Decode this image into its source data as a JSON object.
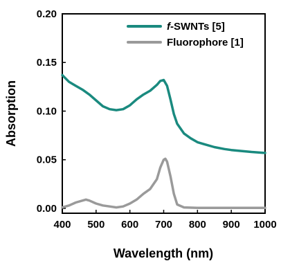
{
  "chart_data": {
    "type": "line",
    "xlabel": "Wavelength (nm)",
    "ylabel": "Absorption",
    "xlim": [
      400,
      1000
    ],
    "ylim": [
      -0.005,
      0.2
    ],
    "x_ticks": [
      "400",
      "500",
      "600",
      "700",
      "800",
      "900",
      "1000"
    ],
    "y_ticks": [
      "0.00",
      "0.05",
      "0.10",
      "0.15",
      "0.20"
    ],
    "x_tick_values": [
      400,
      500,
      600,
      700,
      800,
      900,
      1000
    ],
    "y_tick_values": [
      0.0,
      0.05,
      0.1,
      0.15,
      0.2
    ],
    "grid": false,
    "legend_position": "top-right",
    "series": [
      {
        "name_prefix": "f",
        "name_suffix": "-SWNTs [5]",
        "name": "f-SWNTs [5]",
        "color": "#1a8a7f",
        "x": [
          400,
          420,
          440,
          460,
          480,
          500,
          520,
          540,
          560,
          580,
          600,
          620,
          640,
          660,
          680,
          690,
          700,
          710,
          720,
          730,
          740,
          760,
          780,
          800,
          820,
          850,
          880,
          900,
          930,
          960,
          1000
        ],
        "y": [
          0.137,
          0.13,
          0.126,
          0.122,
          0.117,
          0.111,
          0.105,
          0.102,
          0.101,
          0.102,
          0.106,
          0.112,
          0.117,
          0.121,
          0.127,
          0.131,
          0.132,
          0.126,
          0.112,
          0.097,
          0.087,
          0.077,
          0.072,
          0.068,
          0.066,
          0.063,
          0.061,
          0.06,
          0.059,
          0.058,
          0.057
        ]
      },
      {
        "name": "Fluorophore [1]",
        "color": "#9a9a9a",
        "x": [
          400,
          420,
          440,
          460,
          470,
          480,
          500,
          520,
          540,
          560,
          580,
          600,
          620,
          640,
          660,
          680,
          690,
          700,
          705,
          710,
          720,
          730,
          740,
          760,
          800,
          850,
          900,
          950,
          1000
        ],
        "y": [
          0.001,
          0.003,
          0.006,
          0.008,
          0.009,
          0.008,
          0.005,
          0.003,
          0.002,
          0.001,
          0.002,
          0.005,
          0.009,
          0.015,
          0.02,
          0.03,
          0.042,
          0.05,
          0.051,
          0.048,
          0.033,
          0.015,
          0.004,
          0.001,
          0.0005,
          0.0005,
          0.0005,
          0.0005,
          0.0005
        ]
      }
    ]
  }
}
